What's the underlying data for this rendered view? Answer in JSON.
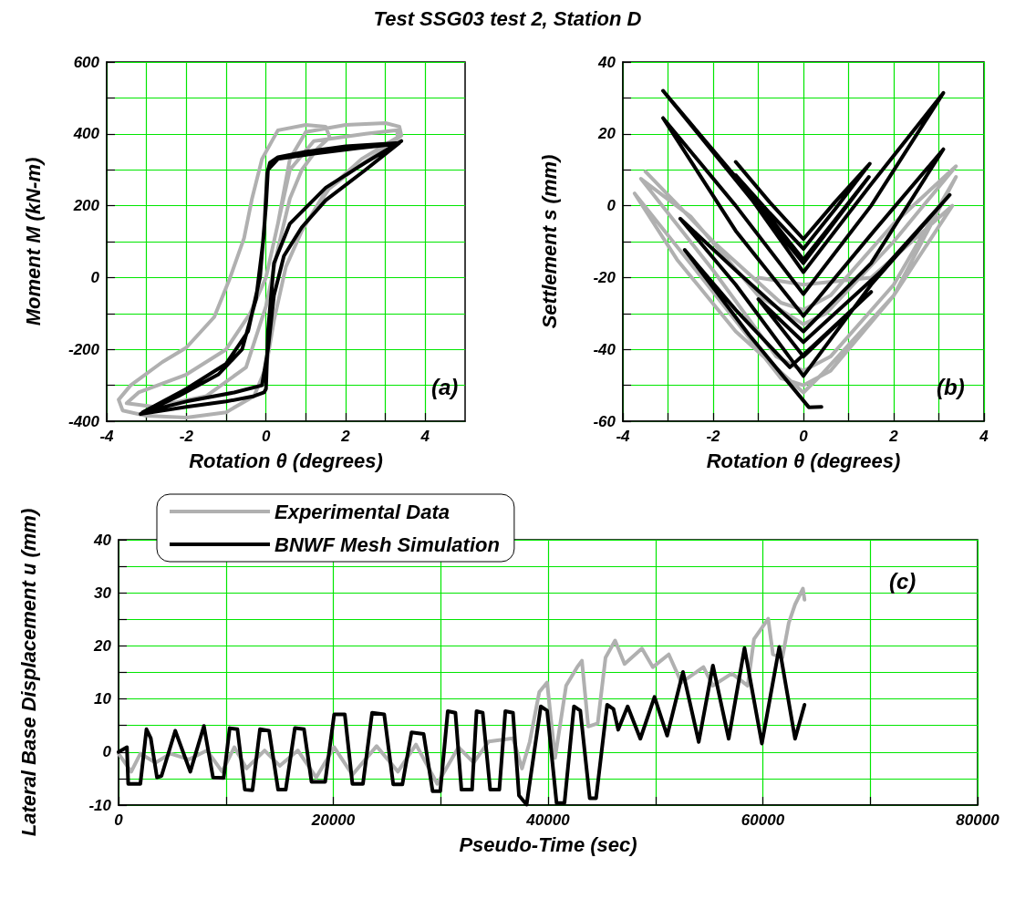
{
  "chart_data": [
    {
      "type": "line",
      "title": "Test SSG03 test 2, Station D",
      "xlabel": "Rotation θ (degrees)",
      "ylabel": "Moment M (kN-m)",
      "annotations": [
        "(a)"
      ],
      "grid": true,
      "xlim": [
        -4,
        5
      ],
      "xticks": [
        -4,
        {
          "value": -3,
          "label": null
        },
        -2,
        {
          "value": -1,
          "label": null
        },
        0,
        {
          "value": 1,
          "label": null
        },
        2,
        {
          "value": 3,
          "label": null
        },
        4
      ],
      "ylim": [
        -400,
        600
      ],
      "yticks": [
        -400,
        {
          "value": -300,
          "label": null
        },
        -200,
        {
          "value": -100,
          "label": null
        },
        0,
        {
          "value": 100,
          "label": null
        },
        200,
        {
          "value": 300,
          "label": null
        },
        400,
        {
          "value": 500,
          "label": null
        },
        600
      ],
      "series": [
        {
          "color": "#b0b0b0",
          "x": [
            0,
            0.3,
            0.6,
            1.0,
            2.0,
            3.0,
            3.35,
            3.4,
            3.0,
            2.2,
            1.5,
            0.9,
            0.5,
            0.2,
            0.0,
            -0.3,
            -1.0,
            -2.0,
            -3.0,
            -3.6,
            -3.7,
            -3.4,
            -2.6,
            -2.0,
            -1.3,
            -0.9,
            -0.55,
            -0.35,
            -0.1,
            0.3,
            1.0,
            1.5,
            1.6,
            1.3,
            0.9,
            0.6,
            0.3,
            0.0,
            -0.5,
            -1.5,
            -2.8,
            -3.5,
            -3.2,
            -2.0,
            -1.0,
            -0.4,
            0.0,
            0.3,
            0.6,
            1.2,
            2.5,
            3.3,
            3.3,
            2.4,
            1.6,
            1.0
          ],
          "values": [
            0,
            150,
            330,
            405,
            425,
            430,
            420,
            395,
            360,
            300,
            240,
            130,
            30,
            -120,
            -250,
            -330,
            -375,
            -390,
            -385,
            -370,
            -340,
            -300,
            -235,
            -195,
            -110,
            0,
            110,
            220,
            330,
            410,
            425,
            420,
            390,
            360,
            300,
            220,
            80,
            -80,
            -250,
            -330,
            -360,
            -350,
            -320,
            -270,
            -200,
            -100,
            0,
            150,
            300,
            380,
            400,
            410,
            390,
            330,
            250,
            150
          ]
        },
        {
          "color": "#000000",
          "x": [
            3.4,
            2.5,
            1.5,
            0.6,
            0.2,
            0.05,
            0.0,
            -0.05,
            -0.3,
            -1.0,
            -2.0,
            -3.15,
            -2.2,
            -1.2,
            -0.6,
            -0.25,
            -0.05,
            0.03,
            0.1,
            0.3,
            1.0,
            2.0,
            3.35,
            2.5,
            1.5,
            0.9,
            0.45,
            0.2,
            0.05,
            -0.1,
            -0.8,
            -2.0,
            -3.1,
            -2.0,
            -1.0,
            -0.45,
            -0.15,
            0.0,
            0.05,
            0.3,
            1.2,
            2.3,
            3.3
          ],
          "values": [
            380,
            320,
            250,
            150,
            40,
            -150,
            -310,
            -320,
            -330,
            -345,
            -360,
            -380,
            -330,
            -270,
            -200,
            -60,
            120,
            290,
            320,
            335,
            350,
            365,
            375,
            300,
            215,
            140,
            60,
            -50,
            -200,
            -300,
            -320,
            -345,
            -375,
            -310,
            -240,
            -150,
            0,
            200,
            300,
            330,
            345,
            360,
            372
          ]
        }
      ]
    },
    {
      "type": "line",
      "xlabel": "Rotation θ (degrees)",
      "ylabel": "Settlement s (mm)",
      "annotations": [
        "(b)"
      ],
      "grid": true,
      "xlim": [
        -4,
        4
      ],
      "xticks": [
        -4,
        {
          "value": -3,
          "label": null
        },
        -2,
        {
          "value": -1,
          "label": null
        },
        0,
        {
          "value": 1,
          "label": null
        },
        2,
        {
          "value": 3,
          "label": null
        },
        4
      ],
      "ylim": [
        -60,
        40
      ],
      "yticks": [
        -60,
        {
          "value": -50,
          "label": null
        },
        -40,
        {
          "value": -30,
          "label": null
        },
        -20,
        {
          "value": -10,
          "label": null
        },
        0,
        {
          "value": 10,
          "label": null
        },
        20,
        {
          "value": 30,
          "label": null
        },
        40
      ],
      "series": [
        {
          "color": "#b0b0b0",
          "x": [
            -3.5,
            -2,
            -0.5,
            0,
            0.6,
            2,
            3.38,
            2,
            0.5,
            0,
            -1,
            -2.5,
            -3.6,
            -2,
            -0.6,
            0,
            0.6,
            2,
            3.38,
            2,
            0.4,
            0,
            -1.5,
            -2.8,
            -3.74,
            -2,
            -0.5,
            0,
            0.6,
            2,
            3.3,
            1.5,
            0,
            -1
          ],
          "values": [
            9.5,
            -10,
            -27,
            -29,
            -25,
            -5,
            11,
            -10,
            -30,
            -33,
            -25,
            -3,
            7.5,
            -18,
            -42,
            -46,
            -42,
            -22,
            8,
            -25,
            -47,
            -52,
            -35,
            -15,
            3.4,
            -24,
            -48,
            -50,
            -46,
            -25,
            0,
            -20,
            -22,
            -20
          ]
        },
        {
          "color": "#000000",
          "x": [
            -1.5,
            -0.75,
            0,
            0.7,
            1.47,
            0.7,
            0,
            -0.75,
            -1.5,
            -0.7,
            0,
            0.7,
            1.45,
            0,
            -3.11,
            -1.5,
            0,
            1.5,
            3.1,
            1.5,
            0,
            -1.5,
            -3.11,
            -1.5,
            0,
            1.5,
            3.1,
            1.5,
            0,
            -1.5,
            -2.73,
            -1.5,
            0,
            1.5,
            3.24,
            1.7,
            0,
            -1,
            0,
            1.5,
            -0.3,
            -1.5,
            -2.63,
            -1.2,
            0.12,
            0.4
          ],
          "values": [
            12.2,
            1,
            -9.3,
            1,
            11.7,
            -1,
            -12,
            -2,
            8.5,
            -4,
            -15,
            -4,
            8,
            -16,
            32,
            8,
            -18.5,
            6,
            31.4,
            0,
            -24.6,
            0,
            24.4,
            -7,
            -30.7,
            -8,
            15.7,
            -16,
            -35,
            -18,
            -3.6,
            -22,
            -47.4,
            -22,
            3,
            -18.5,
            -38,
            -26,
            -42,
            -24,
            -45,
            -29,
            -12.3,
            -36,
            -56.1,
            -56
          ]
        }
      ]
    },
    {
      "type": "line",
      "xlabel": "Pseudo-Time (sec)",
      "ylabel": "Lateral Base Displacement u (mm)",
      "annotations": [
        "(c)"
      ],
      "grid": true,
      "legend": "top left",
      "xlim": [
        0,
        80000
      ],
      "xticks": [
        0,
        {
          "value": 10000,
          "label": null
        },
        20000,
        {
          "value": 30000,
          "label": null
        },
        40000,
        {
          "value": 50000,
          "label": null
        },
        60000,
        {
          "value": 70000,
          "label": null
        },
        80000
      ],
      "ylim": [
        -10,
        40
      ],
      "yticks": [
        -10,
        {
          "value": -5,
          "label": null
        },
        0,
        {
          "value": 5,
          "label": null
        },
        10,
        {
          "value": 15,
          "label": null
        },
        20,
        {
          "value": 25,
          "label": null
        },
        30,
        {
          "value": 35,
          "label": null
        },
        40
      ],
      "series": [
        {
          "name": "Experimental Data",
          "color": "#b0b0b0",
          "x": [
            0,
            1180,
            2030,
            3440,
            4850,
            6540,
            8240,
            9650,
            10780,
            11910,
            13600,
            15010,
            16700,
            18400,
            20080,
            21780,
            24030,
            26010,
            27700,
            29680,
            31660,
            33070,
            34480,
            36730,
            37570,
            38290,
            39180,
            39910,
            40650,
            41680,
            42710,
            43150,
            43740,
            44620,
            45350,
            46240,
            47120,
            48740,
            49760,
            51240,
            52410,
            54470,
            55350,
            57120,
            58590,
            59180,
            60500,
            60940,
            61820,
            62410,
            63000,
            63730,
            63880
          ],
          "values": [
            -0.3,
            -3.7,
            -0.3,
            -2,
            -0.3,
            -1.4,
            0.3,
            -3.7,
            0.9,
            -3.1,
            0.3,
            -2.6,
            0.3,
            -4.8,
            0.9,
            -4.3,
            1.1,
            -3.7,
            1.4,
            -6,
            0.9,
            -2,
            2,
            2.6,
            -3.1,
            1.9,
            11.3,
            13.1,
            -1.1,
            12.5,
            16,
            17.2,
            4.8,
            5.4,
            17.8,
            21,
            16.6,
            19.5,
            16,
            18.4,
            13.1,
            16,
            12.5,
            14.8,
            12.5,
            21.3,
            25.1,
            18.4,
            17.8,
            24.3,
            27.8,
            30.8,
            28.7
          ]
        },
        {
          "name": "BNWF Mesh Simulation",
          "color": "#000000",
          "x": [
            0,
            780,
            900,
            2030,
            2600,
            3000,
            3580,
            4000,
            5280,
            6680,
            7950,
            8800,
            9790,
            10350,
            11070,
            11760,
            12470,
            13170,
            14020,
            14860,
            15570,
            16420,
            17270,
            17970,
            19240,
            20080,
            21070,
            21780,
            22760,
            23610,
            24740,
            25580,
            26430,
            27280,
            28410,
            29250,
            29960,
            30660,
            31370,
            31930,
            32920,
            33340,
            33910,
            34610,
            35460,
            36020,
            36730,
            37290,
            38000,
            39320,
            39910,
            40790,
            41530,
            42410,
            43000,
            43880,
            44470,
            45500,
            46090,
            46530,
            47410,
            48590,
            49910,
            51090,
            52560,
            54030,
            55350,
            56820,
            58290,
            59910,
            61530,
            63000,
            63880
          ],
          "values": [
            0,
            0.9,
            -6,
            -6,
            4.3,
            2.6,
            -4.8,
            -4.5,
            4,
            -3.7,
            4.9,
            -4.8,
            -4.9,
            4.5,
            4.3,
            -7.1,
            -7.2,
            4.3,
            4,
            -7.1,
            -7.1,
            4.5,
            4.3,
            -5.6,
            -5.6,
            7.1,
            7.1,
            -6,
            -6,
            7.4,
            7.1,
            -6.1,
            -6.1,
            3.7,
            3.4,
            -7.4,
            -7.4,
            7.7,
            7.4,
            -7.1,
            -7.1,
            7.7,
            7.4,
            -7.1,
            -7.1,
            7.7,
            7.4,
            -8.2,
            -9.9,
            8.6,
            7.8,
            -9.6,
            -9.6,
            8.6,
            7.8,
            -8.7,
            -8.7,
            8.9,
            8.1,
            4.2,
            8.6,
            2.5,
            10.4,
            3.1,
            15.1,
            1.9,
            16.3,
            2.5,
            19.6,
            1.6,
            19.8,
            2.5,
            8.9
          ]
        }
      ]
    }
  ]
}
